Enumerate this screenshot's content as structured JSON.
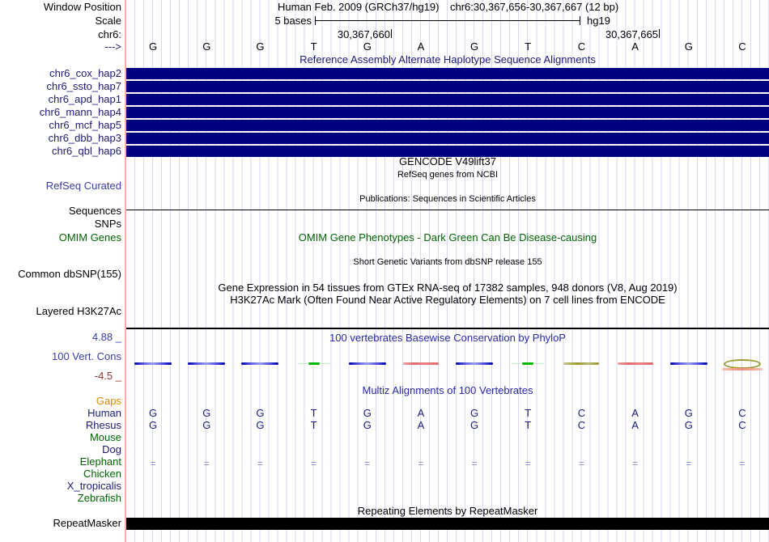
{
  "colors": {
    "navy": "#000080",
    "label_navy": "#1b1b7a",
    "title_blue": "#2929a3",
    "green": "#006400",
    "orange": "#dd8800",
    "maroon": "#993333",
    "slate_blue": "#3c3cac",
    "grid": "#d8d8f2",
    "pink_line": "#ffabab",
    "cons_red": "#e06a6a",
    "cons_green": "#00b800",
    "cons_olive": "#9a9a30",
    "equals_blue": "#8a8ac8"
  },
  "header": {
    "window_position_label": "Window Position",
    "assembly": "Human Feb. 2009 (GRCh37/hg19)",
    "region": "chr6:30,367,656-30,367,667 (12 bp)",
    "scale_label": "Scale",
    "scale_value": "5 bases",
    "genome": "hg19",
    "chrom_label": "chr6:",
    "strand_arrow": "--->",
    "ruler_ticks": [
      "30,367,660",
      "30,367,665"
    ]
  },
  "sequence": {
    "bases": [
      "G",
      "G",
      "G",
      "T",
      "G",
      "A",
      "G",
      "T",
      "C",
      "A",
      "G",
      "C"
    ]
  },
  "haplotypes": {
    "title": "Reference Assembly Alternate Haplotype Sequence Alignments",
    "items": [
      "chr6_cox_hap2",
      "chr6_ssto_hap7",
      "chr6_apd_hap1",
      "chr6_mann_hap4",
      "chr6_mcf_hap5",
      "chr6_dbb_hap3",
      "chr6_qbl_hap6"
    ]
  },
  "genes": {
    "gencode_title": "GENCODE V49lift37",
    "refseq_subtitle": "RefSeq genes from NCBI",
    "refseq_label": "RefSeq Curated",
    "publications_title": "Publications: Sequences in Scientific Articles",
    "sequences_label": "Sequences",
    "snps_label": "SNPs"
  },
  "omim": {
    "label": "OMIM Genes",
    "title": "OMIM Gene Phenotypes - Dark Green Can Be Disease-causing"
  },
  "dbsnp": {
    "label": "Common dbSNP(155)",
    "title": "Short Genetic Variants from dbSNP release 155"
  },
  "gtex": {
    "title": "Gene Expression in 54 tissues from GTEx RNA-seq of 17382 samples, 948 donors (V8, Aug 2019)"
  },
  "h3k27ac": {
    "label": "Layered H3K27Ac",
    "title": "H3K27Ac Mark (Often Found Near Active Regulatory Elements) on 7 cell lines from ENCODE"
  },
  "conservation": {
    "label": "100 Vert. Cons",
    "title": "100 vertebrates Basewise Conservation by PhyloP",
    "max_label": "4.88 _",
    "min_label": "-4.5 _",
    "marks": [
      "blue",
      "blue",
      "blue",
      "green",
      "blue",
      "red",
      "blue",
      "green",
      "olive",
      "red",
      "blue",
      "ellipse"
    ]
  },
  "multiz": {
    "title": "Multiz Alignments of 100 Vertebrates",
    "species": [
      {
        "name": "Gaps",
        "color": "orange"
      },
      {
        "name": "Human",
        "color": "navy"
      },
      {
        "name": "Rhesus",
        "color": "navy"
      },
      {
        "name": "Mouse",
        "color": "green"
      },
      {
        "name": "Dog",
        "color": "navy"
      },
      {
        "name": "Elephant",
        "color": "green"
      },
      {
        "name": "Chicken",
        "color": "green"
      },
      {
        "name": "X_tropicalis",
        "color": "navy"
      },
      {
        "name": "Zebrafish",
        "color": "green"
      }
    ],
    "rows": {
      "human": [
        "G",
        "G",
        "G",
        "T",
        "G",
        "A",
        "G",
        "T",
        "C",
        "A",
        "G",
        "C"
      ],
      "rhesus": [
        "G",
        "G",
        "G",
        "T",
        "G",
        "A",
        "G",
        "T",
        "C",
        "A",
        "G",
        "C"
      ],
      "elephant": [
        "=",
        "=",
        "=",
        "=",
        "=",
        "=",
        "=",
        "=",
        "=",
        "=",
        "=",
        "="
      ]
    }
  },
  "repeatmasker": {
    "title": "Repeating Elements by RepeatMasker",
    "label": "RepeatMasker"
  }
}
